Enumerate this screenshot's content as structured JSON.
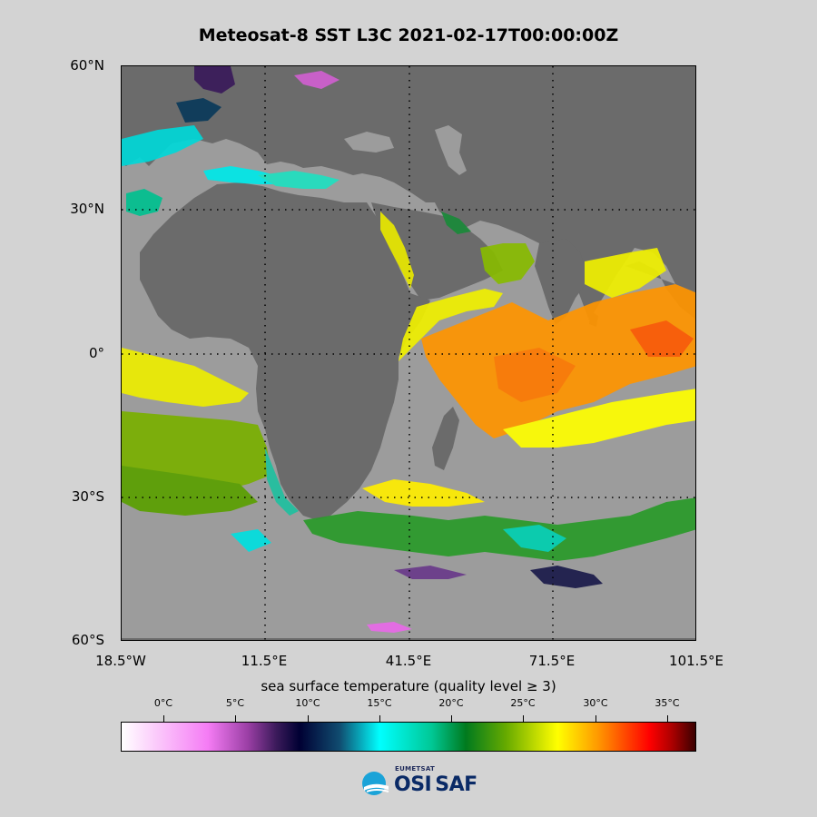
{
  "title": "Meteosat-8 SST L3C 2021-02-17T00:00:00Z",
  "y_ticks": [
    "60°N",
    "30°N",
    "0°",
    "30°S",
    "60°S"
  ],
  "x_ticks": [
    "18.5°W",
    "11.5°E",
    "41.5°E",
    "71.5°E",
    "101.5°E"
  ],
  "colorbar": {
    "label": "sea surface temperature (quality level ≥ 3)",
    "ticks": [
      "0°C",
      "5°C",
      "10°C",
      "15°C",
      "20°C",
      "25°C",
      "30°C",
      "35°C"
    ],
    "range_c": [
      -3,
      37
    ]
  },
  "logo": {
    "org": "EUMETSAT",
    "name_a": "OSI",
    "name_b": "SAF"
  },
  "colors": {
    "land": "#6b6b6b",
    "masked_ocean": "#9c9c9c",
    "background": "#d3d3d3"
  }
}
